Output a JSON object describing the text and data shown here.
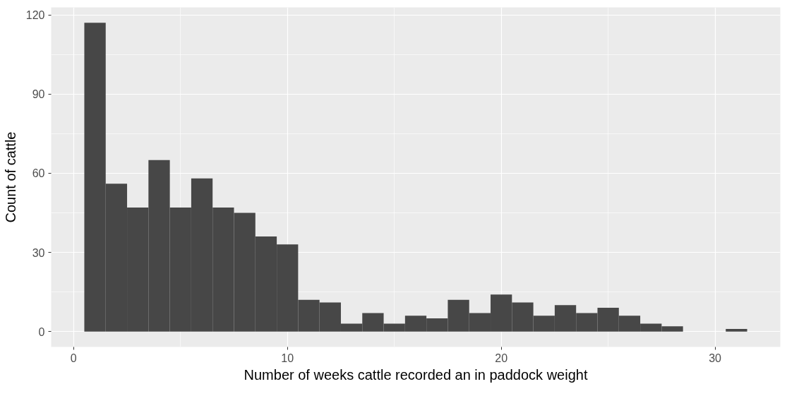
{
  "chart_data": {
    "type": "histogram",
    "xlabel": "Number of weeks cattle recorded an in paddock weight",
    "ylabel": "Count of cattle",
    "bins": [
      0.5,
      1.5,
      2.5,
      3.5,
      4.5,
      5.5,
      6.5,
      7.5,
      8.5,
      9.5,
      10.5,
      11.5,
      12.5,
      13.5,
      14.5,
      15.5,
      16.5,
      17.5,
      18.5,
      19.5,
      20.5,
      21.5,
      22.5,
      23.5,
      24.5,
      25.5,
      26.5,
      27.5,
      28.5,
      29.5,
      30.5,
      31.5
    ],
    "values": [
      117,
      56,
      47,
      65,
      47,
      58,
      47,
      45,
      36,
      33,
      12,
      11,
      3,
      7,
      3,
      6,
      5,
      12,
      7,
      14,
      11,
      6,
      10,
      7,
      9,
      6,
      3,
      2,
      0,
      0,
      1
    ],
    "color": "#474747",
    "xlim": [
      -1.05,
      33.05
    ],
    "ylim": [
      -5.85,
      122.85
    ],
    "xticks": [
      0,
      10,
      20,
      30
    ],
    "yticks": [
      0,
      30,
      60,
      90,
      120
    ],
    "grid": true
  }
}
